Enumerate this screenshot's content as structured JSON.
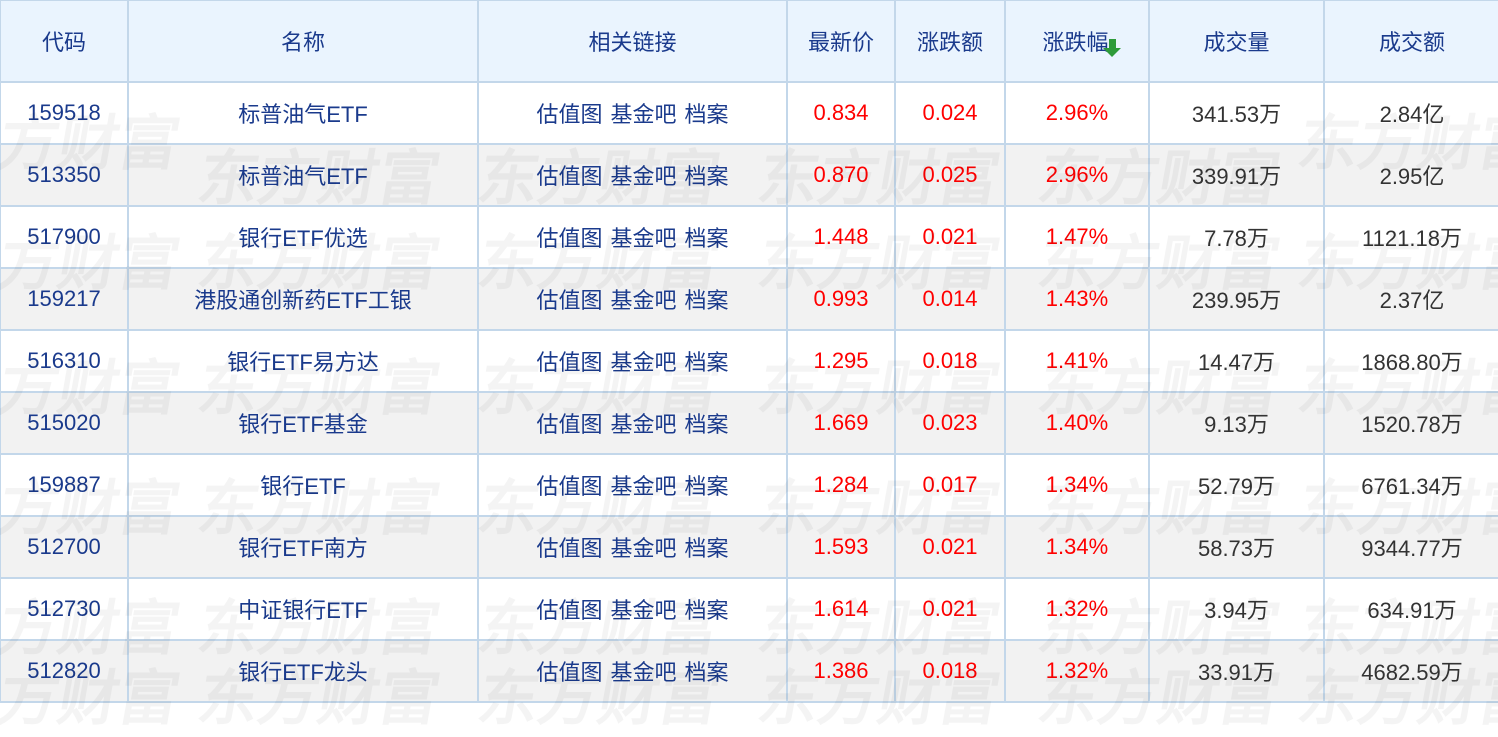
{
  "headers": [
    "代码",
    "名称",
    "相关链接",
    "最新价",
    "涨跌额",
    "涨跌幅",
    "成交量",
    "成交额"
  ],
  "sort_icon": "arrow-down-icon",
  "sort_color": "#2e9b3a",
  "up_color": "#ff0000",
  "link_labels": [
    "估值图",
    "基金吧",
    "档案"
  ],
  "watermark": "东方财富",
  "rows": [
    {
      "code": "159518",
      "name": "标普油气ETF",
      "price": "0.834",
      "change": "0.024",
      "pct": "2.96%",
      "volume": "341.53万",
      "amount": "2.84亿"
    },
    {
      "code": "513350",
      "name": "标普油气ETF",
      "price": "0.870",
      "change": "0.025",
      "pct": "2.96%",
      "volume": "339.91万",
      "amount": "2.95亿"
    },
    {
      "code": "517900",
      "name": "银行ETF优选",
      "price": "1.448",
      "change": "0.021",
      "pct": "1.47%",
      "volume": "7.78万",
      "amount": "1121.18万"
    },
    {
      "code": "159217",
      "name": "港股通创新药ETF工银",
      "price": "0.993",
      "change": "0.014",
      "pct": "1.43%",
      "volume": "239.95万",
      "amount": "2.37亿"
    },
    {
      "code": "516310",
      "name": "银行ETF易方达",
      "price": "1.295",
      "change": "0.018",
      "pct": "1.41%",
      "volume": "14.47万",
      "amount": "1868.80万"
    },
    {
      "code": "515020",
      "name": "银行ETF基金",
      "price": "1.669",
      "change": "0.023",
      "pct": "1.40%",
      "volume": "9.13万",
      "amount": "1520.78万"
    },
    {
      "code": "159887",
      "name": "银行ETF",
      "price": "1.284",
      "change": "0.017",
      "pct": "1.34%",
      "volume": "52.79万",
      "amount": "6761.34万"
    },
    {
      "code": "512700",
      "name": "银行ETF南方",
      "price": "1.593",
      "change": "0.021",
      "pct": "1.34%",
      "volume": "58.73万",
      "amount": "9344.77万"
    },
    {
      "code": "512730",
      "name": "中证银行ETF",
      "price": "1.614",
      "change": "0.021",
      "pct": "1.32%",
      "volume": "3.94万",
      "amount": "634.91万"
    },
    {
      "code": "512820",
      "name": "银行ETF龙头",
      "price": "1.386",
      "change": "0.018",
      "pct": "1.32%",
      "volume": "33.91万",
      "amount": "4682.59万"
    }
  ]
}
